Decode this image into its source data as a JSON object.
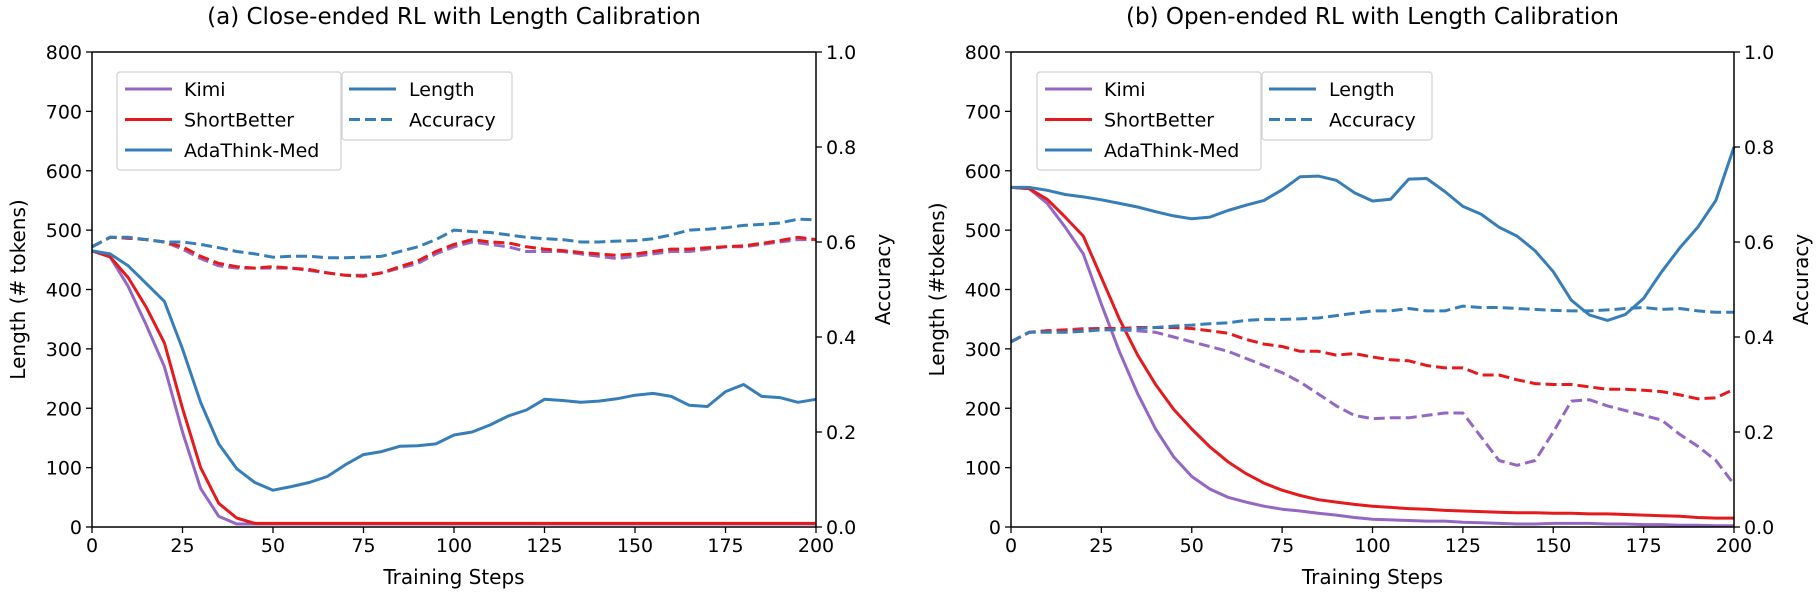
{
  "colors": {
    "kimi": "#9467c4",
    "shortbetter": "#e41a1c",
    "adathink": "#377eb8",
    "axis": "#000000"
  },
  "chart_data": [
    {
      "type": "line",
      "title": "(a) Close-ended RL with Length Calibration",
      "xlabel": "Training Steps",
      "ylabel": "Length (# tokens)",
      "y2label": "Accuracy",
      "xlim": [
        0,
        200
      ],
      "ylim": [
        0,
        800
      ],
      "y2lim": [
        0,
        1.0
      ],
      "xticks": [
        0,
        25,
        50,
        75,
        100,
        125,
        150,
        175,
        200
      ],
      "yticks": [
        0,
        100,
        200,
        300,
        400,
        500,
        600,
        700,
        800
      ],
      "y2ticks": [
        "0.0",
        "0.2",
        "0.4",
        "0.6",
        "0.8",
        "1.0"
      ],
      "grid": false,
      "legend_methods": [
        "Kimi",
        "ShortBetter",
        "AdaThink-Med"
      ],
      "legend_styles": [
        "Length",
        "Accuracy"
      ],
      "legend_placement": "top-left",
      "x": [
        0,
        5,
        10,
        15,
        20,
        25,
        30,
        35,
        40,
        45,
        50,
        55,
        60,
        65,
        70,
        75,
        80,
        85,
        90,
        95,
        100,
        105,
        110,
        115,
        120,
        125,
        130,
        135,
        140,
        145,
        150,
        155,
        160,
        165,
        170,
        175,
        180,
        185,
        190,
        195,
        200
      ],
      "series": [
        {
          "name": "Kimi",
          "metric": "Length",
          "axis": "left",
          "color_key": "kimi",
          "dashed": false,
          "values": [
            465,
            455,
            405,
            340,
            270,
            160,
            65,
            18,
            5,
            5,
            5,
            5,
            5,
            5,
            5,
            5,
            5,
            5,
            5,
            5,
            5,
            5,
            5,
            5,
            5,
            5,
            5,
            5,
            5,
            5,
            5,
            5,
            5,
            5,
            5,
            5,
            5,
            5,
            5,
            5,
            5
          ]
        },
        {
          "name": "ShortBetter",
          "metric": "Length",
          "axis": "left",
          "color_key": "shortbetter",
          "dashed": false,
          "values": [
            465,
            455,
            420,
            370,
            310,
            200,
            100,
            40,
            15,
            6,
            6,
            6,
            6,
            6,
            6,
            6,
            6,
            6,
            6,
            6,
            6,
            6,
            6,
            6,
            6,
            6,
            6,
            6,
            6,
            6,
            6,
            6,
            6,
            6,
            6,
            6,
            6,
            6,
            6,
            6,
            6
          ]
        },
        {
          "name": "AdaThink-Med",
          "metric": "Length",
          "axis": "left",
          "color_key": "adathink",
          "dashed": false,
          "values": [
            465,
            460,
            440,
            410,
            380,
            300,
            210,
            140,
            98,
            75,
            62,
            68,
            75,
            85,
            105,
            122,
            127,
            136,
            137,
            140,
            155,
            160,
            172,
            187,
            197,
            215,
            213,
            210,
            212,
            216,
            222,
            225,
            220,
            205,
            203,
            228,
            240,
            220,
            218,
            210,
            215
          ]
        },
        {
          "name": "Kimi",
          "metric": "Accuracy",
          "axis": "right",
          "color_key": "kimi",
          "dashed": true,
          "values": [
            0.59,
            0.61,
            0.608,
            0.605,
            0.6,
            0.585,
            0.565,
            0.55,
            0.545,
            0.545,
            0.545,
            0.545,
            0.54,
            0.535,
            0.53,
            0.53,
            0.535,
            0.545,
            0.555,
            0.575,
            0.59,
            0.6,
            0.595,
            0.59,
            0.58,
            0.58,
            0.58,
            0.575,
            0.57,
            0.565,
            0.57,
            0.575,
            0.58,
            0.58,
            0.585,
            0.59,
            0.59,
            0.595,
            0.6,
            0.605,
            0.605
          ]
        },
        {
          "name": "ShortBetter",
          "metric": "Accuracy",
          "axis": "right",
          "color_key": "shortbetter",
          "dashed": true,
          "values": [
            0.59,
            0.61,
            0.608,
            0.605,
            0.6,
            0.59,
            0.57,
            0.555,
            0.548,
            0.545,
            0.548,
            0.545,
            0.542,
            0.535,
            0.53,
            0.528,
            0.535,
            0.548,
            0.56,
            0.58,
            0.595,
            0.605,
            0.6,
            0.598,
            0.59,
            0.585,
            0.582,
            0.578,
            0.575,
            0.572,
            0.575,
            0.58,
            0.585,
            0.585,
            0.588,
            0.59,
            0.592,
            0.597,
            0.603,
            0.61,
            0.605
          ]
        },
        {
          "name": "AdaThink-Med",
          "metric": "Accuracy",
          "axis": "right",
          "color_key": "adathink",
          "dashed": true,
          "values": [
            0.59,
            0.61,
            0.61,
            0.605,
            0.6,
            0.6,
            0.595,
            0.588,
            0.58,
            0.575,
            0.568,
            0.57,
            0.57,
            0.567,
            0.567,
            0.568,
            0.57,
            0.58,
            0.59,
            0.605,
            0.625,
            0.622,
            0.62,
            0.615,
            0.61,
            0.607,
            0.605,
            0.6,
            0.6,
            0.602,
            0.603,
            0.607,
            0.615,
            0.625,
            0.627,
            0.63,
            0.635,
            0.637,
            0.64,
            0.648,
            0.647
          ]
        }
      ]
    },
    {
      "type": "line",
      "title": "(b) Open-ended RL with Length Calibration",
      "xlabel": "Training Steps",
      "ylabel": "Length (#tokens)",
      "y2label": "Accuracy",
      "xlim": [
        0,
        200
      ],
      "ylim": [
        0,
        800
      ],
      "y2lim": [
        0,
        1.0
      ],
      "xticks": [
        0,
        25,
        50,
        75,
        100,
        125,
        150,
        175,
        200
      ],
      "yticks": [
        0,
        100,
        200,
        300,
        400,
        500,
        600,
        700,
        800
      ],
      "y2ticks": [
        "0.0",
        "0.2",
        "0.4",
        "0.6",
        "0.8",
        "1.0"
      ],
      "grid": false,
      "legend_methods": [
        "Kimi",
        "ShortBetter",
        "AdaThink-Med"
      ],
      "legend_styles": [
        "Length",
        "Accuracy"
      ],
      "legend_placement": "top-left",
      "x": [
        0,
        5,
        10,
        15,
        20,
        25,
        30,
        35,
        40,
        45,
        50,
        55,
        60,
        65,
        70,
        75,
        80,
        85,
        90,
        95,
        100,
        105,
        110,
        115,
        120,
        125,
        130,
        135,
        140,
        145,
        150,
        155,
        160,
        165,
        170,
        175,
        180,
        185,
        190,
        195,
        200
      ],
      "series": [
        {
          "name": "Kimi",
          "metric": "Length",
          "axis": "left",
          "color_key": "kimi",
          "dashed": false,
          "values": [
            572,
            570,
            545,
            505,
            460,
            375,
            295,
            225,
            165,
            118,
            85,
            64,
            50,
            42,
            35,
            30,
            27,
            23,
            20,
            16,
            13,
            12,
            11,
            10,
            10,
            8,
            7,
            6,
            5,
            5,
            6,
            6,
            6,
            5,
            5,
            4,
            4,
            3,
            3,
            2,
            2
          ]
        },
        {
          "name": "ShortBetter",
          "metric": "Length",
          "axis": "left",
          "color_key": "shortbetter",
          "dashed": false,
          "values": [
            572,
            570,
            552,
            522,
            490,
            420,
            350,
            290,
            240,
            198,
            165,
            135,
            110,
            90,
            74,
            62,
            53,
            46,
            42,
            38,
            35,
            33,
            31,
            30,
            28,
            27,
            26,
            25,
            24,
            24,
            23,
            23,
            22,
            22,
            21,
            20,
            19,
            18,
            16,
            15,
            15
          ]
        },
        {
          "name": "AdaThink-Med",
          "metric": "Length",
          "axis": "left",
          "color_key": "adathink",
          "dashed": false,
          "values": [
            572,
            572,
            567,
            560,
            556,
            551,
            545,
            539,
            531,
            524,
            519,
            522,
            533,
            542,
            550,
            568,
            590,
            591,
            584,
            563,
            549,
            552,
            586,
            587,
            565,
            540,
            527,
            505,
            490,
            465,
            430,
            382,
            357,
            348,
            358,
            385,
            430,
            470,
            505,
            550,
            640
          ]
        },
        {
          "name": "Kimi",
          "metric": "Accuracy",
          "axis": "right",
          "color_key": "kimi",
          "dashed": true,
          "values": [
            0.39,
            0.41,
            0.413,
            0.415,
            0.418,
            0.418,
            0.415,
            0.413,
            0.41,
            0.4,
            0.39,
            0.38,
            0.37,
            0.355,
            0.34,
            0.325,
            0.305,
            0.28,
            0.255,
            0.235,
            0.228,
            0.23,
            0.23,
            0.235,
            0.24,
            0.24,
            0.19,
            0.14,
            0.13,
            0.14,
            0.2,
            0.265,
            0.268,
            0.255,
            0.245,
            0.235,
            0.225,
            0.195,
            0.17,
            0.14,
            0.09
          ]
        },
        {
          "name": "ShortBetter",
          "metric": "Accuracy",
          "axis": "right",
          "color_key": "shortbetter",
          "dashed": true,
          "values": [
            0.39,
            0.41,
            0.413,
            0.415,
            0.415,
            0.418,
            0.418,
            0.42,
            0.42,
            0.42,
            0.418,
            0.413,
            0.408,
            0.395,
            0.385,
            0.38,
            0.37,
            0.37,
            0.362,
            0.365,
            0.358,
            0.352,
            0.35,
            0.34,
            0.335,
            0.335,
            0.32,
            0.32,
            0.31,
            0.302,
            0.3,
            0.3,
            0.295,
            0.29,
            0.29,
            0.288,
            0.285,
            0.278,
            0.27,
            0.272,
            0.29
          ]
        },
        {
          "name": "AdaThink-Med",
          "metric": "Accuracy",
          "axis": "right",
          "color_key": "adathink",
          "dashed": true,
          "values": [
            0.39,
            0.41,
            0.41,
            0.41,
            0.412,
            0.415,
            0.415,
            0.418,
            0.42,
            0.423,
            0.425,
            0.428,
            0.43,
            0.435,
            0.437,
            0.437,
            0.438,
            0.44,
            0.445,
            0.45,
            0.455,
            0.455,
            0.46,
            0.455,
            0.455,
            0.465,
            0.462,
            0.462,
            0.46,
            0.458,
            0.456,
            0.455,
            0.455,
            0.457,
            0.46,
            0.462,
            0.458,
            0.46,
            0.455,
            0.452,
            0.452
          ]
        }
      ]
    }
  ]
}
